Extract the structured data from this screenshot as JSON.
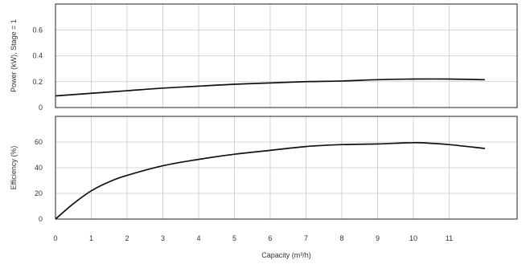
{
  "chart_data": [
    {
      "type": "line",
      "ylabel": "Power (kW), Stage = 1",
      "xlabel": "",
      "xlim": [
        0,
        12.9
      ],
      "ylim": [
        0,
        0.8
      ],
      "yticks": [
        0,
        0.2,
        0.4,
        0.6
      ],
      "ytick_labels": [
        "0",
        "0.2",
        "0.4",
        "0.6"
      ],
      "grid": true,
      "series": [
        {
          "x": [
            0,
            1,
            2,
            3,
            4,
            5,
            6,
            7,
            8,
            9,
            10,
            11,
            12
          ],
          "y": [
            0.09,
            0.11,
            0.13,
            0.15,
            0.165,
            0.18,
            0.19,
            0.2,
            0.205,
            0.215,
            0.22,
            0.22,
            0.215
          ],
          "color": "#111111"
        }
      ]
    },
    {
      "type": "line",
      "ylabel": "Efficiency (%)",
      "xlabel": "Capacity (m³/h)",
      "xlim": [
        0,
        12.9
      ],
      "ylim": [
        0,
        80
      ],
      "yticks": [
        0,
        20,
        40,
        60
      ],
      "ytick_labels": [
        "0",
        "20",
        "40",
        "60"
      ],
      "xticks": [
        0,
        1,
        2,
        3,
        4,
        5,
        6,
        7,
        8,
        9,
        10,
        11
      ],
      "xtick_labels": [
        "0",
        "1",
        "2",
        "3",
        "4",
        "5",
        "6",
        "7",
        "8",
        "9",
        "10",
        "11"
      ],
      "grid": true,
      "series": [
        {
          "x": [
            0,
            0.5,
            1,
            1.5,
            2,
            3,
            4,
            5,
            6,
            7,
            8,
            9,
            10,
            10.5,
            11,
            12
          ],
          "y": [
            0,
            12,
            22,
            29,
            34,
            41.5,
            46.5,
            50.5,
            53.5,
            56.5,
            58,
            58.5,
            59.5,
            59,
            58,
            55
          ],
          "color": "#111111"
        }
      ]
    }
  ]
}
